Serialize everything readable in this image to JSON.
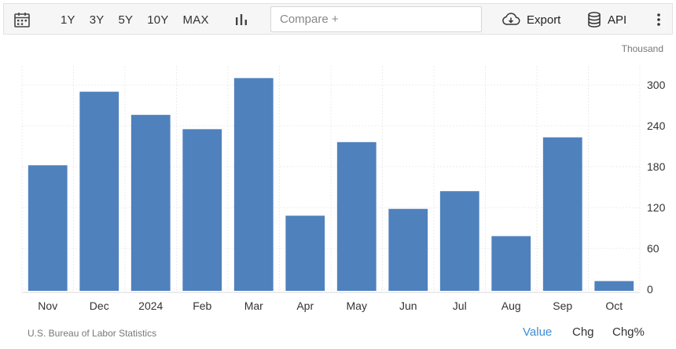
{
  "toolbar": {
    "calendar_icon": "calendar-icon",
    "ranges": [
      "1Y",
      "3Y",
      "5Y",
      "10Y",
      "MAX"
    ],
    "chart_type_icon": "bar-chart-icon",
    "compare_placeholder": "Compare +",
    "export_label": "Export",
    "export_icon": "cloud-download-icon",
    "api_label": "API",
    "api_icon": "database-icon",
    "more_icon": "more-vertical-icon"
  },
  "footer": {
    "source": "U.S. Bureau of Labor Statistics",
    "modes": [
      {
        "label": "Value",
        "active": true
      },
      {
        "label": "Chg",
        "active": false
      },
      {
        "label": "Chg%",
        "active": false
      }
    ]
  },
  "colors": {
    "bar": "#4f81bd",
    "active_mode": "#3b8fd6"
  },
  "chart_data": {
    "type": "bar",
    "unit_label": "Thousand",
    "categories": [
      "Nov",
      "Dec",
      "2024",
      "Feb",
      "Mar",
      "Apr",
      "May",
      "Jun",
      "Jul",
      "Aug",
      "Sep",
      "Oct"
    ],
    "values": [
      182,
      290,
      256,
      235,
      310,
      108,
      216,
      118,
      144,
      78,
      223,
      12
    ],
    "yticks": [
      0,
      60,
      120,
      180,
      240,
      300
    ],
    "ylim": [
      0,
      320
    ],
    "y_axis_side": "right",
    "grid": true
  }
}
